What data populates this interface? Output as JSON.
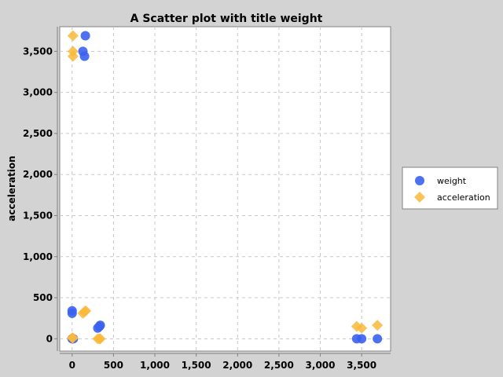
{
  "chart_data": {
    "type": "scatter",
    "title": "A Scatter plot with title weight",
    "xlabel": "",
    "ylabel": "acceleration",
    "xlim": [
      -150,
      3850
    ],
    "ylim": [
      -150,
      3800
    ],
    "xticks": [
      0,
      500,
      1000,
      1500,
      2000,
      2500,
      3000,
      3500
    ],
    "xtick_labels": [
      "0",
      "500",
      "1,000",
      "1,500",
      "2,000",
      "2,500",
      "3,000",
      "3,500"
    ],
    "yticks": [
      0,
      500,
      1000,
      1500,
      2000,
      2500,
      3000,
      3500
    ],
    "ytick_labels": [
      "0",
      "500",
      "1,000",
      "1,500",
      "2,000",
      "2,500",
      "3,000",
      "3,500"
    ],
    "grid": true,
    "legend_position": "right",
    "series": [
      {
        "name": "weight",
        "marker": "circle",
        "color": "#3a62ee",
        "points": [
          [
            160,
            3690
          ],
          [
            130,
            3500
          ],
          [
            150,
            3440
          ],
          [
            0,
            340
          ],
          [
            0,
            310
          ],
          [
            310,
            130
          ],
          [
            330,
            150
          ],
          [
            340,
            165
          ],
          [
            0,
            0
          ],
          [
            15,
            0
          ],
          [
            3440,
            0
          ],
          [
            3500,
            0
          ],
          [
            3690,
            0
          ]
        ]
      },
      {
        "name": "acceleration",
        "marker": "diamond",
        "color": "#f9b93a",
        "points": [
          [
            10,
            3690
          ],
          [
            10,
            3500
          ],
          [
            10,
            3440
          ],
          [
            130,
            310
          ],
          [
            150,
            330
          ],
          [
            165,
            340
          ],
          [
            0,
            10
          ],
          [
            10,
            10
          ],
          [
            310,
            0
          ],
          [
            330,
            0
          ],
          [
            340,
            0
          ],
          [
            3440,
            150
          ],
          [
            3500,
            130
          ],
          [
            3690,
            165
          ]
        ]
      }
    ]
  }
}
